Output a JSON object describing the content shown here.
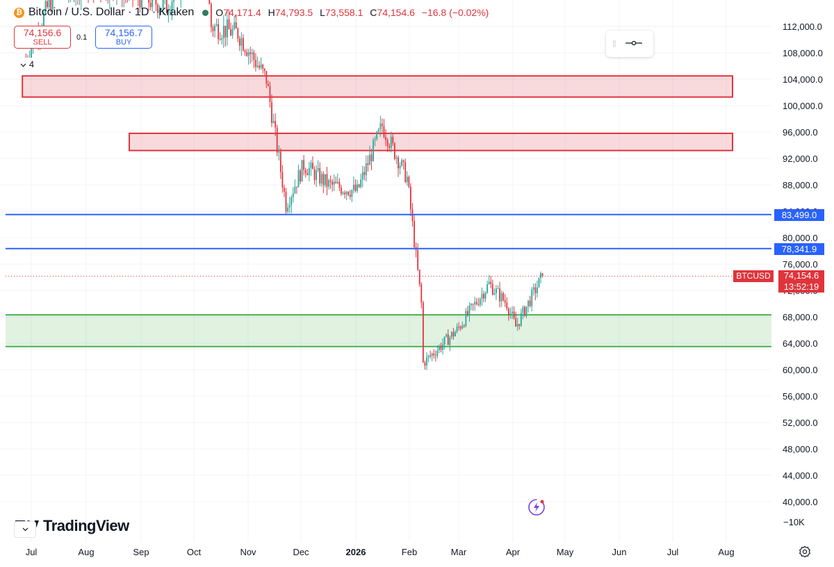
{
  "header": {
    "title": "Bitcoin / U.S. Dollar · 1D · Kraken",
    "icon": "bitcoin-icon",
    "ohlc": {
      "o_label": "O",
      "o": "74,171.4",
      "h_label": "H",
      "h": "74,793.5",
      "l_label": "L",
      "l": "73,558.1",
      "c_label": "C",
      "c": "74,154.6",
      "change": "−16.8 (−0.02%)"
    }
  },
  "trade": {
    "sell_price": "74,156.6",
    "sell_label": "SELL",
    "spread": "0.1",
    "buy_price": "74,156.7",
    "buy_label": "BUY"
  },
  "indicators_toggle": {
    "count": "4"
  },
  "price_axis": {
    "ticks": [
      "112,000.0",
      "108,000.0",
      "104,000.0",
      "100,000.0",
      "96,000.0",
      "92,000.0",
      "88,000.0",
      "84,000.0",
      "80,000.0",
      "76,000.0",
      "72,000.0",
      "68,000.0",
      "64,000.0",
      "60,000.0",
      "56,000.0",
      "52,000.0",
      "48,000.0",
      "44,000.0",
      "40,000.0"
    ],
    "bottom_label": "−10K"
  },
  "time_axis": {
    "labels": [
      {
        "text": "Jul",
        "bold": false
      },
      {
        "text": "Aug",
        "bold": false
      },
      {
        "text": "Sep",
        "bold": false
      },
      {
        "text": "Oct",
        "bold": false
      },
      {
        "text": "Nov",
        "bold": false
      },
      {
        "text": "Dec",
        "bold": false
      },
      {
        "text": "2026",
        "bold": true
      },
      {
        "text": "Feb",
        "bold": false
      },
      {
        "text": "Mar",
        "bold": false
      },
      {
        "text": "Apr",
        "bold": false
      },
      {
        "text": "May",
        "bold": false
      },
      {
        "text": "Jun",
        "bold": false
      },
      {
        "text": "Jul",
        "bold": false
      },
      {
        "text": "Aug",
        "bold": false
      }
    ]
  },
  "drawings": {
    "resistance_zones": [
      {
        "from_date": "2025-06-26",
        "to_date": "2026-08-01",
        "low": 101300,
        "high": 104500
      },
      {
        "from_date": "2025-08-25",
        "to_date": "2026-08-01",
        "low": 93200,
        "high": 95800
      }
    ],
    "support_zone": {
      "low": 63500,
      "high": 68300
    },
    "horizontal_lines": [
      {
        "price": 83499.0,
        "label": "83,499.0"
      },
      {
        "price": 78341.9,
        "label": "78,341.9"
      }
    ]
  },
  "last_price": {
    "symbol": "BTCUSD",
    "price": "74,154.6",
    "countdown": "13:52:19",
    "value": 74154.6
  },
  "branding": {
    "logo_text": "TradingView"
  },
  "colors": {
    "up": "#26a69a",
    "down": "#e0343c",
    "resistance": "#e0343c",
    "support": "#4caf50",
    "level_line": "#2962ff"
  },
  "chart_data": {
    "type": "candlestick",
    "interval": "1D",
    "y_unit": "USD",
    "ylim": [
      38000,
      114000
    ],
    "approx_close_path": [
      [
        "2025-06-28",
        107000
      ],
      [
        "2025-07-15",
        118000
      ],
      [
        "2025-08-15",
        118000
      ],
      [
        "2025-09-15",
        115000
      ],
      [
        "2025-10-06",
        124000
      ],
      [
        "2025-10-10",
        112000
      ],
      [
        "2025-10-25",
        111000
      ],
      [
        "2025-11-10",
        104000
      ],
      [
        "2025-11-21",
        85000
      ],
      [
        "2025-12-01",
        91000
      ],
      [
        "2025-12-15",
        88000
      ],
      [
        "2025-12-31",
        87000
      ],
      [
        "2026-01-14",
        97000
      ],
      [
        "2026-01-28",
        89000
      ],
      [
        "2026-02-05",
        70000
      ],
      [
        "2026-02-06",
        61000
      ],
      [
        "2026-02-25",
        66000
      ],
      [
        "2026-03-15",
        73000
      ],
      [
        "2026-03-25",
        70000
      ],
      [
        "2026-03-30",
        66500
      ],
      [
        "2026-04-14",
        74154.6
      ]
    ],
    "visible_extremes": {
      "high": 97900,
      "high_date": "2026-01-14",
      "low": 60500,
      "low_date": "2026-02-06"
    }
  }
}
